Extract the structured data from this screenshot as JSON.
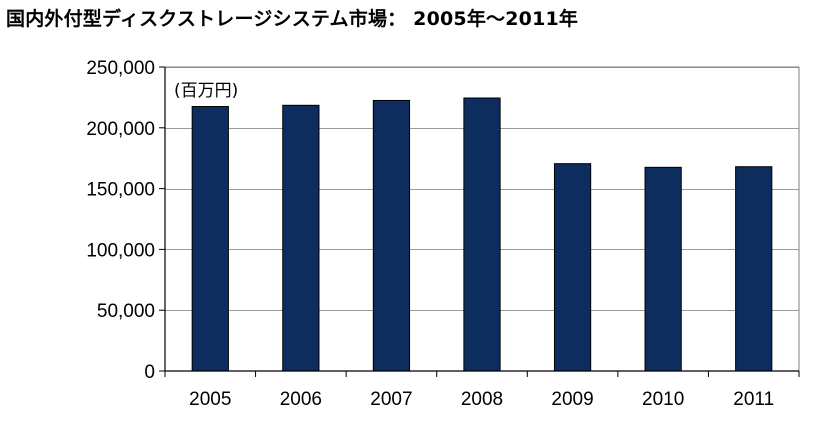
{
  "chart_data": {
    "type": "bar",
    "title": "国内外付型ディスクストレージシステム市場： 2005年～2011年",
    "unit_label": "(百万円)",
    "categories": [
      "2005",
      "2006",
      "2007",
      "2008",
      "2009",
      "2010",
      "2011"
    ],
    "values": [
      217500,
      218500,
      222500,
      224500,
      170500,
      167500,
      168000
    ],
    "y_ticks": [
      0,
      50000,
      100000,
      150000,
      200000,
      250000
    ],
    "y_tick_labels": [
      "0",
      "50,000",
      "100,000",
      "150,000",
      "200,000",
      "250,000"
    ],
    "ylim": [
      0,
      250000
    ],
    "xlabel": "",
    "ylabel": "",
    "grid": true,
    "legend": "none",
    "bar_color": "#0d2d5e",
    "grid_color": "#9a9a9a"
  }
}
